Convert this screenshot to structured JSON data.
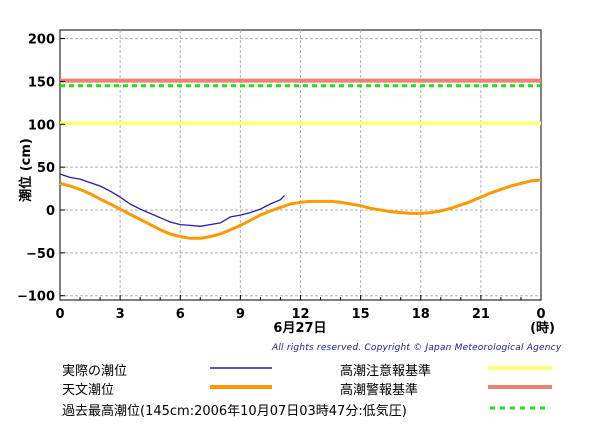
{
  "chart_data": {
    "type": "line",
    "ylabel": "潮位 (cm)",
    "x_tick_labels": [
      "0",
      "3",
      "6",
      "9",
      "12",
      "15",
      "18",
      "21",
      "0"
    ],
    "x_unit_label": "(時)",
    "date_label": "6月27日",
    "xlim": [
      0,
      24
    ],
    "ylim": [
      -105,
      210
    ],
    "y_ticks": [
      -100,
      -50,
      0,
      50,
      100,
      150,
      200
    ],
    "y_tick_labels": [
      "−100",
      "−50",
      "0",
      "50",
      "100",
      "150",
      "200"
    ],
    "grid": true,
    "series": [
      {
        "name": "実際の潮位",
        "color": "#2a1aa8",
        "x": [
          0,
          0.5,
          1,
          1.5,
          2,
          2.5,
          3,
          3.5,
          4,
          4.5,
          5,
          5.5,
          6,
          6.5,
          7,
          7.5,
          8,
          8.5,
          9,
          9.5,
          10,
          10.5,
          11,
          11.2
        ],
        "y": [
          42,
          38,
          36,
          32,
          28,
          22,
          15,
          7,
          1,
          -4,
          -9,
          -14,
          -17,
          -18,
          -19,
          -17,
          -15,
          -8,
          -6,
          -3,
          1,
          7,
          12,
          17
        ]
      },
      {
        "name": "天文潮位",
        "color": "#ff9900",
        "x": [
          0,
          0.5,
          1,
          1.5,
          2,
          2.5,
          3,
          3.5,
          4,
          4.5,
          5,
          5.5,
          6,
          6.5,
          7,
          7.5,
          8,
          8.5,
          9,
          9.5,
          10,
          10.5,
          11,
          11.5,
          12,
          12.5,
          13,
          13.5,
          14,
          14.5,
          15,
          15.5,
          16,
          16.5,
          17,
          17.5,
          18,
          18.5,
          19,
          19.5,
          20,
          20.5,
          21,
          21.5,
          22,
          22.5,
          23,
          23.5,
          24
        ],
        "y": [
          31,
          28,
          24,
          19,
          13,
          7,
          1,
          -5,
          -11,
          -17,
          -23,
          -28,
          -31,
          -33,
          -33,
          -31,
          -28,
          -23,
          -18,
          -12,
          -6,
          -1,
          3,
          7,
          9,
          10,
          10,
          10,
          9,
          7,
          5,
          2,
          0,
          -2,
          -3,
          -4,
          -4,
          -3,
          -1,
          2,
          6,
          10,
          15,
          20,
          24,
          28,
          31,
          34,
          35
        ]
      }
    ],
    "reference_lines": [
      {
        "name": "高潮警報基準",
        "value": 151,
        "color": "#f08070",
        "style": "solid"
      },
      {
        "name": "過去最高潮位(145cm:2006年10月07日03時47分:低気圧)",
        "value": 145,
        "color": "#22dd22",
        "style": "dashed"
      },
      {
        "name": "高潮注意報基準",
        "value": 101,
        "color": "#ffff80",
        "style": "solid"
      }
    ]
  },
  "copyright": "All rights reserved. Copyright © Japan Meteorological Agency",
  "legend": {
    "observed_label": "実際の潮位",
    "astronomical_label": "天文潮位",
    "record_label": "過去最高潮位(145cm:2006年10月07日03時47分:低気圧)",
    "advisory_label": "高潮注意報基準",
    "warning_label": "高潮警報基準",
    "observed_color": "#2a1aa8",
    "astronomical_color": "#ff9900",
    "record_color": "#22dd22",
    "advisory_color": "#ffff80",
    "warning_color": "#f08070"
  }
}
